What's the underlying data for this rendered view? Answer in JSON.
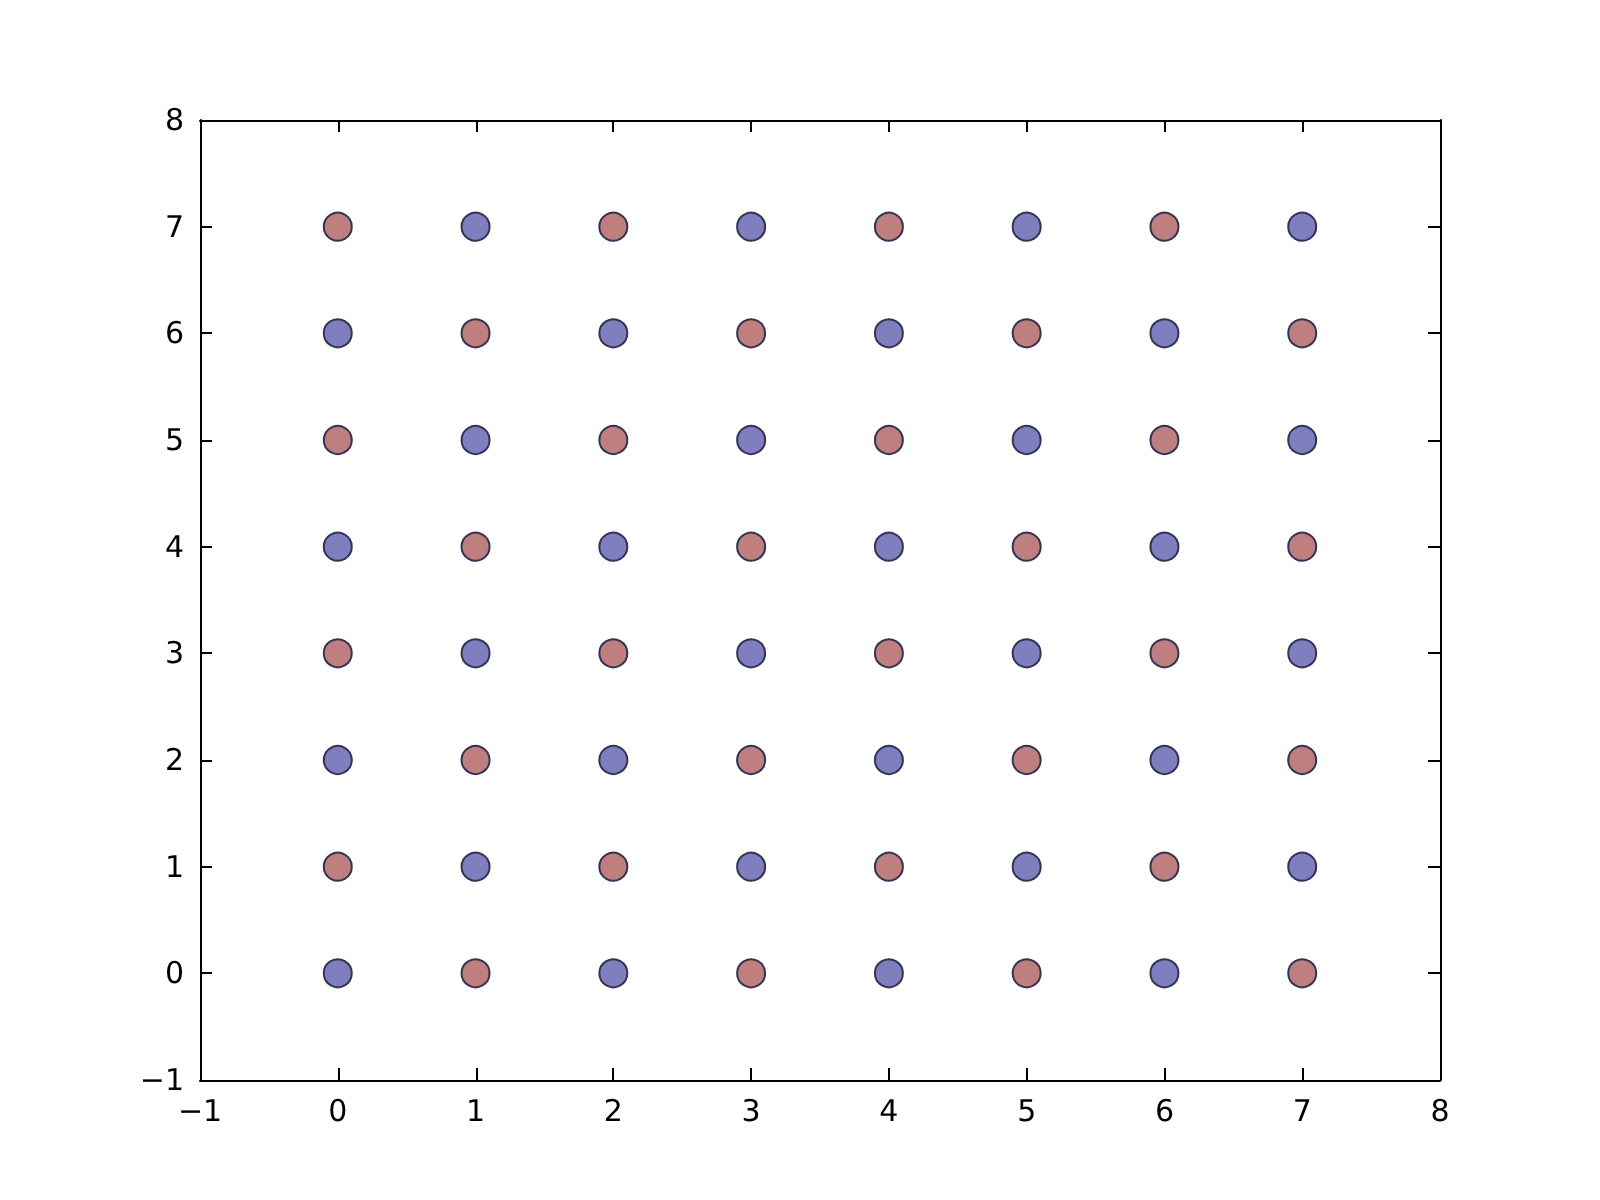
{
  "chart_data": {
    "type": "scatter",
    "marker": "circle",
    "xlim": [
      -1,
      8
    ],
    "ylim": [
      -1,
      8
    ],
    "xticks": [
      {
        "value": -1,
        "label": "−1"
      },
      0,
      1,
      2,
      3,
      4,
      5,
      6,
      7,
      8
    ],
    "yticks": [
      {
        "value": -1,
        "label": "−1"
      },
      0,
      1,
      2,
      3,
      4,
      5,
      6,
      7,
      8
    ],
    "series": [
      {
        "color": "#7f7fbf",
        "x": [
          0,
          0,
          0,
          0,
          1,
          1,
          1,
          1,
          2,
          2,
          2,
          2,
          3,
          3,
          3,
          3,
          4,
          4,
          4,
          4,
          5,
          5,
          5,
          5,
          6,
          6,
          6,
          6,
          7,
          7,
          7,
          7
        ],
        "values": [
          0,
          2,
          4,
          6,
          1,
          3,
          5,
          7,
          0,
          2,
          4,
          6,
          1,
          3,
          5,
          7,
          0,
          2,
          4,
          6,
          1,
          3,
          5,
          7,
          0,
          2,
          4,
          6,
          1,
          3,
          5,
          7
        ]
      },
      {
        "color": "#bf7f7f",
        "x": [
          0,
          0,
          0,
          0,
          1,
          1,
          1,
          1,
          2,
          2,
          2,
          2,
          3,
          3,
          3,
          3,
          4,
          4,
          4,
          4,
          5,
          5,
          5,
          5,
          6,
          6,
          6,
          6,
          7,
          7,
          7,
          7
        ],
        "values": [
          1,
          3,
          5,
          7,
          0,
          2,
          4,
          6,
          1,
          3,
          5,
          7,
          0,
          2,
          4,
          6,
          1,
          3,
          5,
          7,
          0,
          2,
          4,
          6,
          1,
          3,
          5,
          7,
          0,
          2,
          4,
          6
        ]
      }
    ]
  }
}
